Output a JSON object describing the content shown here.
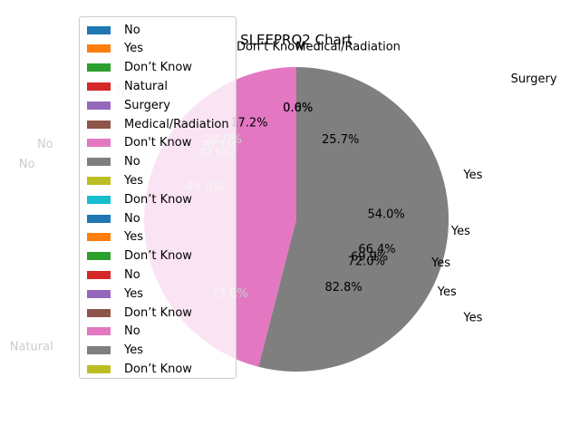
{
  "chart_data": {
    "type": "pie",
    "title": "SLEEPRO2 Chart",
    "legend_placement": "upper-left",
    "legend": [
      {
        "label": "No",
        "color": "#1f77b4"
      },
      {
        "label": "Yes",
        "color": "#ff7f0e"
      },
      {
        "label": "Don’t Know",
        "color": "#2ca02c"
      },
      {
        "label": "Natural",
        "color": "#d62728"
      },
      {
        "label": "Surgery",
        "color": "#9467bd"
      },
      {
        "label": "Medical/Radiation",
        "color": "#8c564b"
      },
      {
        "label": "Don't Know",
        "color": "#e377c2"
      },
      {
        "label": "No",
        "color": "#7f7f7f"
      },
      {
        "label": "Yes",
        "color": "#bcbd22"
      },
      {
        "label": "Don’t Know",
        "color": "#17becf"
      },
      {
        "label": "No",
        "color": "#1f77b4"
      },
      {
        "label": "Yes",
        "color": "#ff7f0e"
      },
      {
        "label": "Don’t Know",
        "color": "#2ca02c"
      },
      {
        "label": "No",
        "color": "#d62728"
      },
      {
        "label": "Yes",
        "color": "#9467bd"
      },
      {
        "label": "Don’t Know",
        "color": "#8c564b"
      },
      {
        "label": "No",
        "color": "#e377c2"
      },
      {
        "label": "Yes",
        "color": "#7f7f7f"
      },
      {
        "label": "Don’t Know",
        "color": "#bcbd22"
      }
    ],
    "visible_pie": {
      "slices": [
        {
          "label": "Yes",
          "value": 54.0,
          "pct_label": "54.0%",
          "color": "#7f7f7f"
        },
        {
          "label": "No",
          "value": 46.0,
          "pct_label": "46.0%",
          "color": "#e377c2"
        }
      ]
    },
    "slice_labels": [
      {
        "text": "No",
        "color": "#cccccc",
        "xd": -1.13,
        "yd": 0.84
      },
      {
        "text": "No",
        "color": "#cccccc",
        "xd": -1.65,
        "yd": 0.49
      },
      {
        "text": "No",
        "color": "#cccccc",
        "xd": -1.77,
        "yd": 0.36
      },
      {
        "text": "Natural",
        "color": "#cccccc",
        "xd": -1.74,
        "yd": -0.84
      },
      {
        "text": "Surgery",
        "color": "#000000",
        "xd": 1.56,
        "yd": 0.92
      },
      {
        "text": "Yes",
        "color": "#000000",
        "xd": 1.16,
        "yd": -0.65
      },
      {
        "text": "Yes",
        "color": "#000000",
        "xd": 0.99,
        "yd": -0.48
      },
      {
        "text": "Yes",
        "color": "#000000",
        "xd": 0.95,
        "yd": -0.29
      },
      {
        "text": "Yes",
        "color": "#000000",
        "xd": 1.08,
        "yd": -0.08
      },
      {
        "text": "Yes",
        "color": "#000000",
        "xd": 1.16,
        "yd": 0.29
      },
      {
        "text": "Don’t Know",
        "color": "#000000",
        "xd": -0.17,
        "yd": 1.13
      },
      {
        "text": "Medical/Radiation",
        "color": "#000000",
        "xd": 0.34,
        "yd": 1.13
      }
    ],
    "pct_labels": [
      {
        "text": "0.6%",
        "color": "#000000",
        "xd": 0.01,
        "yd": 0.73
      },
      {
        "text": "0.0%",
        "color": "#000000",
        "xd": 0.01,
        "yd": 0.73
      },
      {
        "text": "17.2%",
        "color": "#000000",
        "xd": -0.31,
        "yd": 0.63
      },
      {
        "text": "25.7%",
        "color": "#000000",
        "xd": 0.29,
        "yd": 0.52
      },
      {
        "text": "28.0%",
        "color": "#cccccc",
        "xd": -0.48,
        "yd": 0.52
      },
      {
        "text": "30.1%",
        "color": "#cccccc",
        "xd": -0.51,
        "yd": 0.48
      },
      {
        "text": "33.6%",
        "color": "#cccccc",
        "xd": -0.53,
        "yd": 0.43
      },
      {
        "text": "46.0%",
        "color": "#cccccc",
        "xd": -0.6,
        "yd": 0.21
      },
      {
        "text": "54.0%",
        "color": "#000000",
        "xd": 0.59,
        "yd": 0.03
      },
      {
        "text": "66.4%",
        "color": "#000000",
        "xd": 0.53,
        "yd": -0.2
      },
      {
        "text": "69.9%",
        "color": "#000000",
        "xd": 0.48,
        "yd": -0.25
      },
      {
        "text": "72.0%",
        "color": "#000000",
        "xd": 0.46,
        "yd": -0.28
      },
      {
        "text": "73.6%",
        "color": "#cccccc",
        "xd": -0.44,
        "yd": -0.49
      },
      {
        "text": "82.8%",
        "color": "#000000",
        "xd": 0.31,
        "yd": -0.45
      }
    ]
  }
}
